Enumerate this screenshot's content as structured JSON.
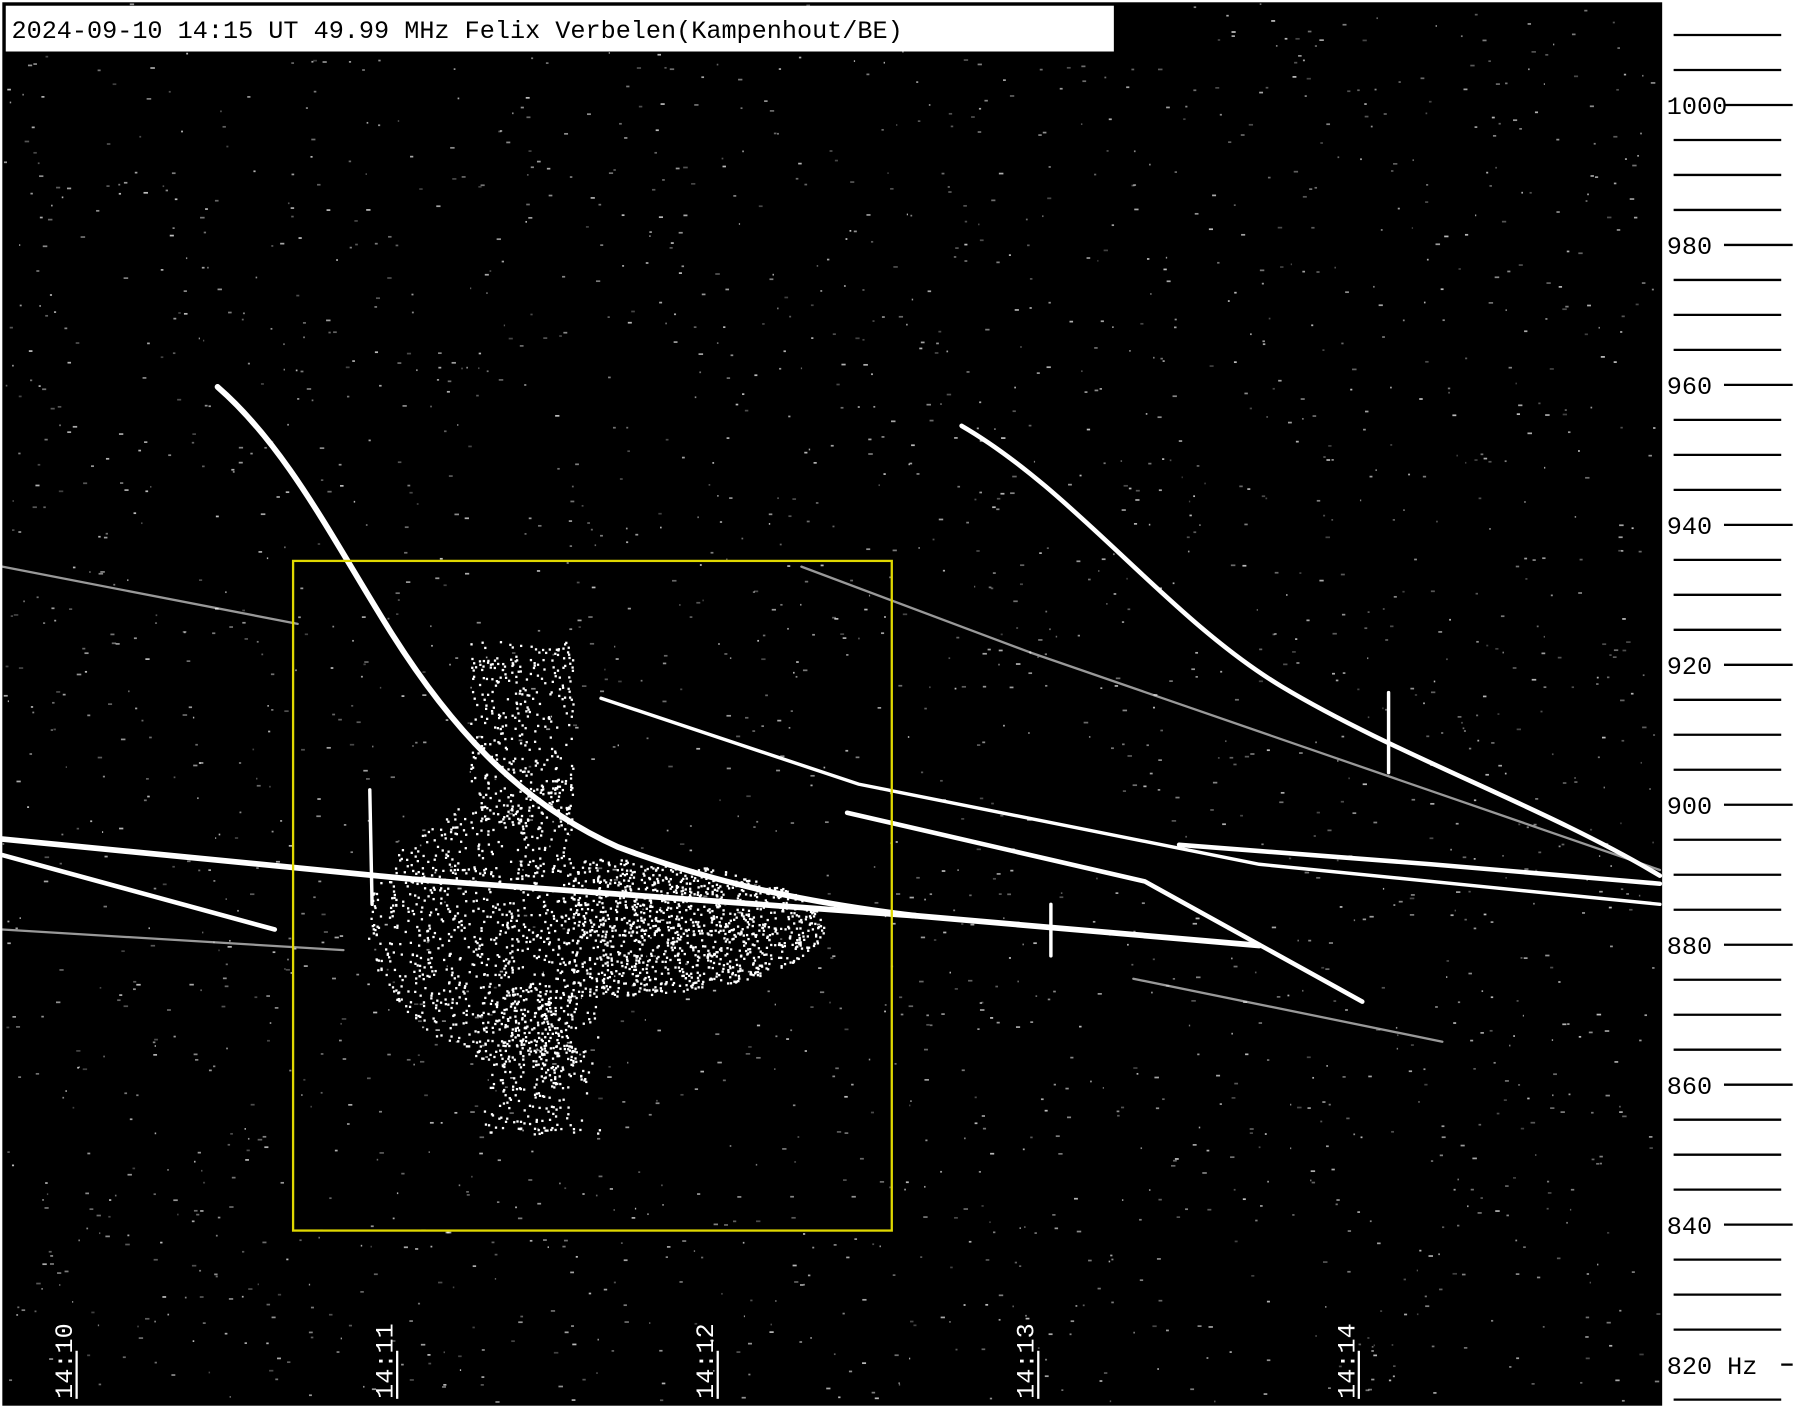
{
  "chart_data": {
    "type": "spectrogram",
    "title": "2024-09-10 14:15 UT 49.99 MHz Felix Verbelen(Kampenhout/BE)",
    "xlim": [
      -0.196,
      4.982
    ],
    "xticks": [
      {
        "value": 0,
        "label": "14:10"
      },
      {
        "value": 1,
        "label": "14:11"
      },
      {
        "value": 2,
        "label": "14:12"
      },
      {
        "value": 3,
        "label": "14:13"
      },
      {
        "value": 4,
        "label": "14:14"
      }
    ],
    "ylim": [
      813.8,
      1015
    ],
    "yticks": [
      {
        "value": 820,
        "label": "820 Hz"
      },
      840,
      860,
      880,
      900,
      920,
      940,
      960,
      980,
      1000
    ],
    "minor_yticks": [
      815,
      825,
      830,
      835,
      845,
      850,
      855,
      865,
      870,
      875,
      885,
      890,
      895,
      905,
      910,
      915,
      925,
      930,
      935,
      945,
      950,
      955,
      965,
      970,
      975,
      985,
      990,
      995,
      1005,
      1010
    ],
    "highlight_color": "#e0d800"
  }
}
